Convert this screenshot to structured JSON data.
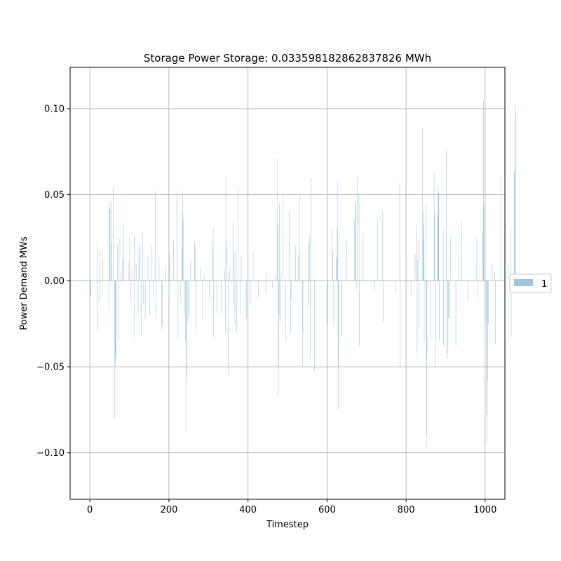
{
  "chart_data": {
    "type": "bar",
    "title": "Storage Power Storage: 0.033598182862837826 MWh",
    "xlabel": "Timestep",
    "ylabel": "Power Demand MWs",
    "xlim": [
      -50,
      1050
    ],
    "ylim": [
      -0.127,
      0.124
    ],
    "xticks": [
      0,
      200,
      400,
      600,
      800,
      1000
    ],
    "xtick_labels": [
      "0",
      "200",
      "400",
      "600",
      "800",
      "1000"
    ],
    "yticks": [
      -0.1,
      -0.05,
      0.0,
      0.05,
      0.1
    ],
    "ytick_labels": [
      "−0.10",
      "−0.05",
      "0.00",
      "0.05",
      "0.10"
    ],
    "grid": true,
    "legend_position": "right",
    "series": [
      {
        "name": "1",
        "color": "#9ec5dd",
        "x_start": 0,
        "x_step": 1,
        "values": [
          -0.023,
          -0.01,
          -0.008,
          0,
          0,
          0,
          0,
          0,
          0,
          0,
          0,
          0,
          0,
          0,
          0,
          0,
          0,
          0,
          -0.029,
          0.02,
          0,
          0,
          0,
          0,
          -0.012,
          0.017,
          0,
          0,
          0,
          0,
          0,
          0,
          0,
          0.013,
          0,
          0,
          0,
          0,
          0,
          0,
          0,
          0,
          0,
          0,
          0,
          0,
          0,
          0,
          -0.016,
          0.041,
          0.045,
          0.042,
          0,
          0,
          0.046,
          0.022,
          0,
          0,
          0,
          0.055,
          0,
          0,
          0,
          -0.08,
          -0.05,
          -0.045,
          -0.042,
          0,
          0,
          0,
          0.02,
          0,
          0,
          -0.035,
          0.025,
          0,
          0,
          0,
          0,
          0.004,
          0,
          0,
          0,
          0.013,
          0,
          0.032,
          0,
          0,
          0,
          0,
          0,
          0,
          0,
          0,
          0,
          0,
          0,
          0,
          0,
          0.011,
          0,
          0.025,
          0,
          0,
          -0.012,
          0,
          0,
          0,
          0.007,
          0,
          0,
          0,
          0.026,
          -0.033,
          0,
          0,
          0,
          0.01,
          0,
          0,
          0,
          0,
          -0.02,
          0,
          0.018,
          0,
          0.022,
          0,
          0,
          0,
          -0.032,
          0,
          0,
          0.028,
          0,
          0,
          -0.014,
          0,
          0,
          0,
          -0.022,
          0,
          0,
          0,
          0,
          0,
          0,
          0.015,
          0,
          0,
          0,
          -0.02,
          0,
          0,
          0,
          0,
          0.021,
          0,
          0,
          0,
          -0.01,
          0,
          0,
          0,
          0,
          0,
          0.052,
          -0.022,
          0,
          0,
          0,
          0,
          0,
          0,
          0,
          0.014,
          0,
          0,
          0,
          0,
          0,
          0,
          -0.028,
          -0.025,
          0,
          0,
          0,
          0,
          0,
          0,
          0,
          0.008,
          0,
          0,
          0,
          0,
          0,
          0,
          0,
          0,
          -0.012,
          0,
          0.016,
          0,
          0,
          0,
          0,
          0,
          0,
          0,
          0,
          0,
          0.024,
          0,
          0,
          0,
          0,
          0,
          0,
          0,
          0.051,
          0,
          0,
          -0.034,
          0,
          0,
          0,
          0,
          0,
          0,
          -0.013,
          0,
          0,
          0.02,
          0.04,
          0.052,
          0.036,
          0,
          0,
          -0.02,
          0,
          0,
          -0.035,
          -0.088,
          0,
          -0.056,
          0,
          0,
          -0.025,
          0,
          0,
          -0.02,
          0,
          0,
          0,
          0.012,
          0,
          0,
          0,
          0,
          0,
          0,
          0,
          0,
          0,
          0.023,
          0.021,
          0,
          0,
          -0.031,
          0,
          0,
          0,
          0,
          0,
          0,
          0,
          0,
          0,
          0.008,
          0,
          0,
          0,
          0,
          0,
          -0.022,
          0,
          0,
          0,
          0.004,
          0,
          0,
          0,
          0,
          0,
          0,
          0,
          0,
          0,
          0,
          0,
          0,
          -0.01,
          0,
          0,
          0,
          0,
          0,
          0,
          0,
          0,
          0.02,
          0.031,
          -0.033,
          0,
          0,
          0,
          0,
          0,
          0,
          0,
          -0.018,
          0,
          0,
          0,
          0,
          0,
          0,
          0,
          0,
          0,
          0,
          -0.019,
          0,
          0,
          0,
          0,
          0,
          0,
          0,
          0,
          0.006,
          0,
          -0.03,
          0.061,
          0.023,
          0,
          0,
          0,
          0,
          -0.055,
          0,
          0.004,
          0.007,
          0,
          0,
          0,
          0,
          -0.003,
          0,
          0,
          0,
          0.034,
          -0.015,
          0,
          0.016,
          0,
          -0.025,
          0,
          0,
          0.018,
          -0.03,
          0,
          0,
          0,
          0.055,
          0,
          0,
          0,
          0,
          0,
          -0.02,
          0,
          0.015,
          0,
          0,
          0,
          0,
          0,
          0,
          0,
          0,
          0,
          0,
          0,
          0,
          -0.022,
          0,
          0,
          0,
          0.022,
          0,
          0,
          0,
          0,
          0,
          -0.013,
          0,
          0,
          0,
          0,
          0,
          0,
          0.017,
          0,
          0,
          0,
          0,
          0,
          0,
          0,
          0,
          0,
          0,
          0,
          0,
          -0.01,
          0,
          0,
          0,
          0,
          0,
          0,
          0,
          0,
          0,
          0,
          0,
          0,
          0,
          0,
          0,
          0,
          0,
          0,
          -0.007,
          0,
          0,
          0.004,
          0,
          0,
          0,
          0,
          0,
          0,
          0,
          0,
          0,
          0,
          0,
          0,
          0,
          -0.004,
          0,
          0,
          0,
          0,
          0,
          0,
          0.003,
          0,
          0,
          0,
          0,
          0.032,
          0.071,
          0,
          -0.067,
          -0.05,
          -0.02,
          0.045,
          -0.025,
          0.004,
          0,
          0,
          0,
          0,
          0,
          0,
          0.05,
          0,
          0,
          0,
          0,
          0,
          0,
          -0.035,
          0,
          0,
          0,
          0,
          0,
          0,
          0,
          0.04,
          0,
          0,
          0,
          -0.03,
          -0.012,
          0,
          0,
          0,
          0,
          0,
          0,
          0,
          0,
          0,
          0,
          0.02,
          0,
          0,
          0,
          0,
          0,
          0,
          0,
          0.015,
          0,
          0,
          0.05,
          0,
          0,
          0,
          0,
          0,
          0,
          -0.05,
          -0.03,
          0,
          0,
          0,
          0,
          0,
          0,
          0,
          0,
          0,
          0,
          0,
          0,
          0.022,
          -0.015,
          0,
          0,
          0.026,
          0,
          -0.045,
          0.06,
          0,
          0,
          0,
          0,
          0,
          0,
          0,
          0,
          -0.052,
          0,
          0,
          0,
          0,
          0,
          0,
          0,
          0,
          0,
          0,
          0,
          0,
          0,
          0,
          0,
          0,
          0,
          0,
          0,
          0,
          0,
          0,
          0,
          0,
          0,
          0,
          0,
          0,
          0,
          0,
          0,
          0,
          0,
          -0.025,
          0,
          0,
          0,
          0,
          0,
          0,
          0,
          0,
          0,
          0,
          0.03,
          0.017,
          0,
          0,
          -0.026,
          0,
          0,
          0,
          0,
          0,
          0,
          0.013,
          0.015,
          0.057,
          0.03,
          -0.05,
          -0.075,
          0,
          0,
          0,
          0,
          0,
          0,
          -0.033,
          0,
          0,
          0,
          0,
          0,
          0,
          0,
          0,
          0,
          0,
          0,
          0,
          0,
          0.023,
          0,
          0,
          0,
          0,
          0,
          0,
          0,
          0,
          0,
          0,
          0,
          0,
          0,
          0,
          0,
          0,
          0,
          0,
          0.035,
          0,
          0.045,
          0.046,
          0,
          0,
          -0.005,
          0.06,
          0,
          0,
          0,
          0,
          0.05,
          -0.038,
          0,
          0,
          0,
          0,
          0,
          0,
          0,
          0,
          0.028,
          0,
          0,
          0,
          0,
          0,
          0,
          0,
          0,
          0,
          0,
          0,
          0,
          0,
          0,
          0,
          0,
          0,
          0,
          0,
          0,
          0,
          0,
          0,
          0,
          0,
          0,
          0,
          0,
          0,
          -0.006,
          0,
          0,
          0,
          0,
          0,
          0,
          0.035,
          0,
          0,
          0,
          0,
          0,
          0,
          0,
          0,
          0,
          0,
          0,
          0,
          0.04,
          -0.024,
          0,
          0,
          0,
          0,
          0,
          0,
          0,
          0,
          0,
          0,
          0,
          0,
          0,
          0,
          0,
          0,
          0,
          0,
          0,
          0,
          0,
          0,
          0,
          0,
          0,
          0,
          0,
          0,
          0,
          0,
          -0.007,
          0,
          0,
          0,
          0,
          0,
          0,
          0,
          0,
          0,
          0,
          0.057,
          -0.05,
          0,
          0,
          0,
          0,
          0,
          0,
          0,
          0,
          0,
          0,
          0,
          0,
          0,
          0,
          0,
          0,
          0,
          0,
          0,
          0,
          0,
          0,
          0,
          0,
          0,
          0,
          0,
          0,
          -0.008,
          0,
          0,
          0,
          0,
          0,
          0,
          0,
          0,
          0.016,
          0,
          0,
          0.032,
          0,
          -0.042,
          0.012,
          0,
          0,
          0.024,
          -0.028,
          0,
          0,
          0,
          0,
          0,
          0,
          0,
          0,
          0.089,
          0.04,
          0.033,
          0.024,
          -0.035,
          0,
          0,
          0,
          0.045,
          -0.098,
          -0.09,
          -0.045,
          0,
          0,
          0,
          0,
          0,
          0,
          0,
          0,
          -0.033,
          0,
          0,
          0,
          0,
          0,
          0,
          0,
          0,
          0.063,
          0.04,
          0,
          0,
          -0.05,
          0,
          0,
          0,
          0.038,
          0,
          0.055,
          0.052,
          0.05,
          -0.035,
          0,
          0,
          0,
          0,
          0,
          0,
          0,
          0,
          0,
          0.03,
          -0.038,
          0,
          0,
          0,
          0,
          0,
          0,
          0.076,
          -0.045,
          0,
          0,
          -0.042,
          -0.022,
          0,
          0,
          0,
          -0.022,
          0.025,
          0,
          0,
          0,
          0,
          0,
          0,
          0,
          0,
          0,
          0,
          0,
          0,
          0,
          -0.038,
          0,
          0,
          0,
          0,
          0,
          0,
          0,
          0.015,
          0,
          0,
          0,
          0,
          0,
          0,
          0.035,
          0,
          0,
          0,
          0,
          0,
          0,
          0,
          0,
          0,
          0,
          0,
          0,
          0,
          0,
          -0.012,
          0,
          0,
          0,
          0,
          0,
          0,
          0,
          0,
          0,
          0,
          0,
          0,
          0,
          0,
          0,
          0,
          0,
          0,
          0,
          0,
          0,
          0,
          0.025,
          0,
          0,
          -0.01,
          0,
          0,
          0,
          0,
          0,
          0,
          0,
          0,
          0,
          0,
          0,
          0.028,
          0.045,
          0.105,
          0.042,
          0,
          0,
          0,
          0,
          0,
          -0.024,
          -0.078,
          -0.095,
          -0.058,
          0,
          -0.025,
          0,
          0,
          0,
          0,
          0,
          0,
          0,
          0,
          0,
          0.01,
          0,
          0,
          0,
          0,
          0,
          0.005,
          0,
          -0.037,
          0,
          0,
          0,
          0,
          0,
          0,
          0,
          0,
          0,
          0,
          0,
          0,
          0,
          0.061,
          0,
          0,
          0,
          0,
          0,
          0,
          0,
          0,
          0,
          0,
          0,
          0,
          0,
          0,
          0,
          0,
          0,
          0.01,
          0,
          0,
          0,
          0,
          0,
          0,
          0.03,
          -0.033,
          0,
          0,
          0,
          0,
          0,
          0,
          0,
          0.063,
          0.064,
          0.095,
          0.103,
          0,
          0,
          0,
          0,
          0,
          0
        ]
      }
    ]
  }
}
